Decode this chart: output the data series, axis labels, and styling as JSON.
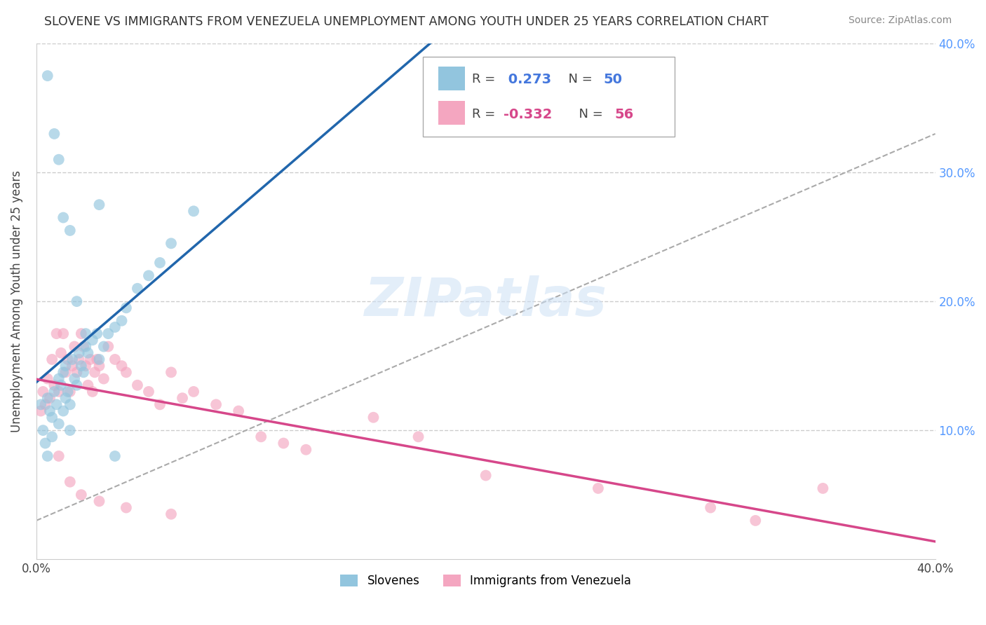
{
  "title": "SLOVENE VS IMMIGRANTS FROM VENEZUELA UNEMPLOYMENT AMONG YOUTH UNDER 25 YEARS CORRELATION CHART",
  "source": "Source: ZipAtlas.com",
  "ylabel": "Unemployment Among Youth under 25 years",
  "xlim": [
    0.0,
    0.4
  ],
  "ylim": [
    0.0,
    0.4
  ],
  "color_slovene": "#92c5de",
  "color_venezuela": "#f4a6c0",
  "color_line_slovene": "#2166ac",
  "color_line_venezuela": "#d6478a",
  "color_dash": "#aaaaaa",
  "watermark": "ZIPatlas",
  "legend1_label": "Slovenes",
  "legend2_label": "Immigrants from Venezuela",
  "r1_val": "0.273",
  "r1_n": "50",
  "r2_val": "-0.332",
  "r2_n": "56",
  "text_color_blue": "#4477dd",
  "text_color_pink": "#d6478a",
  "right_tick_color": "#5599ff",
  "slovene_x": [
    0.002,
    0.003,
    0.004,
    0.005,
    0.005,
    0.006,
    0.007,
    0.007,
    0.008,
    0.009,
    0.01,
    0.01,
    0.011,
    0.012,
    0.012,
    0.013,
    0.013,
    0.014,
    0.015,
    0.015,
    0.016,
    0.017,
    0.018,
    0.019,
    0.02,
    0.021,
    0.022,
    0.023,
    0.025,
    0.027,
    0.028,
    0.03,
    0.032,
    0.035,
    0.038,
    0.04,
    0.045,
    0.05,
    0.055,
    0.06,
    0.005,
    0.008,
    0.01,
    0.012,
    0.015,
    0.018,
    0.022,
    0.028,
    0.035,
    0.07
  ],
  "slovene_y": [
    0.12,
    0.1,
    0.09,
    0.08,
    0.125,
    0.115,
    0.11,
    0.095,
    0.13,
    0.12,
    0.14,
    0.105,
    0.135,
    0.115,
    0.145,
    0.125,
    0.15,
    0.13,
    0.12,
    0.1,
    0.155,
    0.14,
    0.135,
    0.16,
    0.15,
    0.145,
    0.165,
    0.16,
    0.17,
    0.175,
    0.155,
    0.165,
    0.175,
    0.18,
    0.185,
    0.195,
    0.21,
    0.22,
    0.23,
    0.245,
    0.375,
    0.33,
    0.31,
    0.265,
    0.255,
    0.2,
    0.175,
    0.275,
    0.08,
    0.27
  ],
  "venezuela_x": [
    0.002,
    0.003,
    0.004,
    0.005,
    0.006,
    0.007,
    0.008,
    0.009,
    0.01,
    0.011,
    0.012,
    0.013,
    0.014,
    0.015,
    0.016,
    0.017,
    0.018,
    0.019,
    0.02,
    0.021,
    0.022,
    0.023,
    0.024,
    0.025,
    0.026,
    0.027,
    0.028,
    0.03,
    0.032,
    0.035,
    0.038,
    0.04,
    0.045,
    0.05,
    0.055,
    0.06,
    0.065,
    0.07,
    0.08,
    0.09,
    0.1,
    0.11,
    0.12,
    0.15,
    0.17,
    0.2,
    0.25,
    0.3,
    0.32,
    0.35,
    0.01,
    0.015,
    0.02,
    0.028,
    0.04,
    0.06
  ],
  "venezuela_y": [
    0.115,
    0.13,
    0.12,
    0.14,
    0.125,
    0.155,
    0.135,
    0.175,
    0.13,
    0.16,
    0.175,
    0.145,
    0.155,
    0.13,
    0.15,
    0.165,
    0.145,
    0.155,
    0.175,
    0.165,
    0.15,
    0.135,
    0.155,
    0.13,
    0.145,
    0.155,
    0.15,
    0.14,
    0.165,
    0.155,
    0.15,
    0.145,
    0.135,
    0.13,
    0.12,
    0.145,
    0.125,
    0.13,
    0.12,
    0.115,
    0.095,
    0.09,
    0.085,
    0.11,
    0.095,
    0.065,
    0.055,
    0.04,
    0.03,
    0.055,
    0.08,
    0.06,
    0.05,
    0.045,
    0.04,
    0.035
  ],
  "dash_line_x": [
    0.0,
    0.4
  ],
  "dash_line_y_start": 0.03,
  "dash_line_y_end": 0.33
}
